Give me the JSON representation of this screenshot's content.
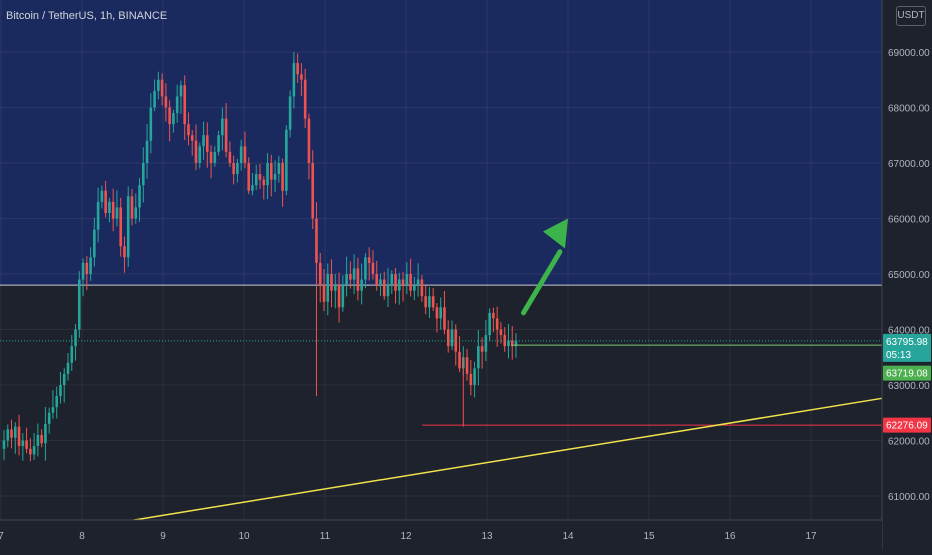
{
  "header": {
    "symbol_title": "Bitcoin / TetherUS, 1h, BINANCE",
    "currency": "USDT"
  },
  "colors": {
    "background": "#1e222d",
    "zone_fill": "#1b2a5e",
    "up_candle": "#26a69a",
    "down_candle": "#ef5350",
    "trendline": "#f2e34c",
    "support_line": "#f23645",
    "price_line": "#7ec76a",
    "zone_border": "#c9ccd6",
    "arrow": "#3cb44b"
  },
  "price_axis": {
    "ticks": [
      "69000.00",
      "68000.00",
      "67000.00",
      "66000.00",
      "65000.00",
      "64000.00",
      "63000.00",
      "62000.00",
      "61000.00"
    ],
    "labels": [
      {
        "name": "last-price-label",
        "text": "63795.98",
        "countdown": "05:13",
        "color": "#26a69a"
      },
      {
        "name": "target-price-label",
        "text": "63719.08",
        "color": "#4caf50"
      },
      {
        "name": "support-price-label",
        "text": "62276.09",
        "color": "#f23645"
      }
    ]
  },
  "time_axis": {
    "ticks": [
      "7",
      "8",
      "9",
      "10",
      "11",
      "12",
      "13",
      "14",
      "15",
      "16",
      "17"
    ]
  },
  "chart_data": {
    "type": "candlestick",
    "title": "Bitcoin / TetherUS, 1h, BINANCE",
    "xlabel": "",
    "ylabel": "",
    "x_range": [
      "Nov 7",
      "Nov 17"
    ],
    "ylim": [
      60500,
      69700
    ],
    "grid": true,
    "candle_path_close": [
      62000,
      62200,
      62050,
      62250,
      61900,
      62000,
      61850,
      61750,
      61900,
      62100,
      61950,
      62300,
      62500,
      62600,
      62800,
      63000,
      63200,
      63400,
      63700,
      64000,
      64900,
      65200,
      65000,
      65300,
      65800,
      66300,
      66500,
      66100,
      66300,
      66000,
      66200,
      65500,
      65300,
      66400,
      66000,
      66200,
      66600,
      67000,
      67400,
      68000,
      68300,
      68500,
      68200,
      68000,
      67700,
      67900,
      68200,
      68400,
      67700,
      67500,
      67400,
      67000,
      67300,
      67500,
      67200,
      67000,
      67200,
      67500,
      67800,
      67200,
      67000,
      66800,
      67000,
      67300,
      67000,
      66500,
      66600,
      66800,
      66700,
      66600,
      67000,
      66700,
      66800,
      67000,
      66500,
      67600,
      68200,
      68800,
      68600,
      68500,
      67800,
      67000,
      66000,
      65200,
      64800,
      64500,
      65000,
      64700,
      64800,
      64400,
      64800,
      65000,
      64900,
      65100,
      64700,
      64900,
      65300,
      65200,
      65000,
      64800,
      64900,
      64600,
      64800,
      65000,
      64700,
      64900,
      64800,
      65000,
      64700,
      64800,
      64900,
      64600,
      64400,
      64600,
      64400,
      64200,
      64400,
      64000,
      63700,
      64000,
      63600,
      63300,
      63500,
      63200,
      63000,
      63300,
      63700,
      63600,
      63900,
      64300,
      64200,
      64000,
      63900,
      63700,
      63800,
      63700,
      63800
    ],
    "last_price": 63795.98,
    "annotations": {
      "resistance_zone_bottom": 64800,
      "resistance_zone_top": 69700,
      "support_line": 62276.09,
      "target_line": 63719.08,
      "trendline": {
        "from": [
          "Nov 8.5",
          60550
        ],
        "to": [
          "Nov 17.7",
          62760
        ]
      },
      "arrow": {
        "from": [
          "Nov 13.4",
          64300
        ],
        "to": [
          "Nov 14",
          66000
        ],
        "direction": "up"
      }
    }
  }
}
